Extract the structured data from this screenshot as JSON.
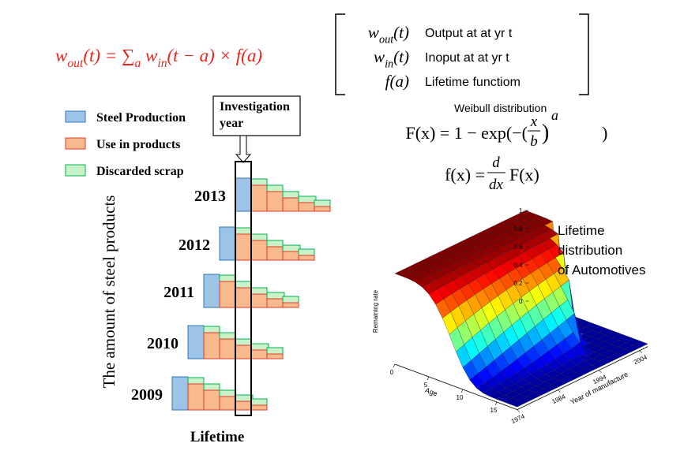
{
  "formula": [
    {
      "text": "w"
    },
    {
      "sub": "out"
    },
    {
      "text": "(t) = ∑"
    },
    {
      "sub": "a"
    },
    {
      "text": " w"
    },
    {
      "sub": "in"
    },
    {
      "text": "(t − a) × f(a)"
    }
  ],
  "definitions": [
    {
      "symbol": [
        {
          "text": "w"
        },
        {
          "sub": "out"
        },
        {
          "text": "(t)"
        }
      ],
      "description": "Output at at yr t"
    },
    {
      "symbol": [
        {
          "text": "w"
        },
        {
          "sub": "in"
        },
        {
          "text": "(t)"
        }
      ],
      "description": "Inoput at at yr t"
    },
    {
      "symbol": [
        {
          "text": "f(a)"
        }
      ],
      "description": "Lifetime functiom"
    }
  ],
  "weibull": {
    "title": "Weibull distribution",
    "cdf": {
      "lhs": "F(x) = 1 − exp(−(",
      "num": "x",
      "den": "b",
      "close": ")",
      "exp": "a",
      "end": ")"
    },
    "pdf": {
      "lhs": "f(x) =",
      "num": "d",
      "den": "dx",
      "rhs": "F(x)"
    }
  },
  "legend": [
    "Steel Production",
    "Use in products",
    "Discarded scrap"
  ],
  "investigation_year": [
    "Investigation",
    "year"
  ],
  "years": [
    "2013",
    "2012",
    "2011",
    "2010",
    "2009"
  ],
  "y_axis_label": "The amount of steel products",
  "x_axis_label": "Lifetime",
  "surface_plot": {
    "title": [
      "Lifetime",
      "distribution",
      "of Automotives"
    ],
    "z_label": "Remaining rate",
    "zticks": [
      0,
      0.2,
      0.4,
      0.6,
      0.8,
      1
    ],
    "x_label": "Age",
    "xticks": [
      0,
      5,
      10,
      15
    ],
    "y_label": "Year of manufacture",
    "yticks": [
      1974,
      1984,
      1994,
      2004
    ]
  }
}
